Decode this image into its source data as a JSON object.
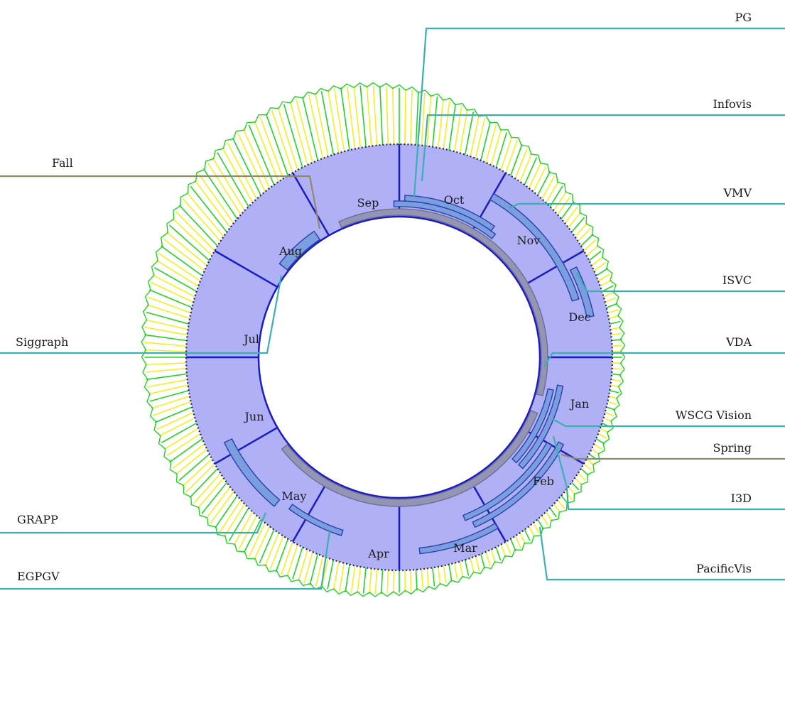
{
  "months": [
    {
      "key": "jan",
      "label": "Jan"
    },
    {
      "key": "feb",
      "label": "Feb"
    },
    {
      "key": "mar",
      "label": "Mar"
    },
    {
      "key": "apr",
      "label": "Apr"
    },
    {
      "key": "may",
      "label": "May"
    },
    {
      "key": "jun",
      "label": "Jun"
    },
    {
      "key": "jul",
      "label": "Jul"
    },
    {
      "key": "aug",
      "label": "Aug"
    },
    {
      "key": "sep",
      "label": "Sep"
    },
    {
      "key": "oct",
      "label": "Oct"
    },
    {
      "key": "nov",
      "label": "Nov"
    },
    {
      "key": "dec",
      "label": "Dec"
    }
  ],
  "callouts": [
    {
      "key": "pg",
      "label": "PG",
      "kind": "conference"
    },
    {
      "key": "infovis",
      "label": "Infovis",
      "kind": "conference"
    },
    {
      "key": "vmv",
      "label": "VMV",
      "kind": "conference"
    },
    {
      "key": "isvc",
      "label": "ISVC",
      "kind": "conference"
    },
    {
      "key": "vda",
      "label": "VDA",
      "kind": "conference"
    },
    {
      "key": "wscg",
      "label": "WSCG Vision",
      "kind": "conference"
    },
    {
      "key": "spring",
      "label": "Spring",
      "kind": "season"
    },
    {
      "key": "i3d",
      "label": "I3D",
      "kind": "conference"
    },
    {
      "key": "pacificvis",
      "label": "PacificVis",
      "kind": "conference"
    },
    {
      "key": "fall",
      "label": "Fall",
      "kind": "season"
    },
    {
      "key": "siggraph",
      "label": "Siggraph",
      "kind": "conference"
    },
    {
      "key": "grapp",
      "label": "GRAPP",
      "kind": "conference"
    },
    {
      "key": "egpgv",
      "label": "EGPGV",
      "kind": "conference"
    }
  ],
  "colors": {
    "ring_fill": "#b0b0f6",
    "ring_stroke": "#1c1cc4",
    "outer_dotted": "#24245e",
    "conference_bar": "#7a9ee0",
    "conference_bar_stroke": "#2b3fa8",
    "season_bar": "#9494b4",
    "conference_line": "#3ab0b0",
    "season_line": "#8c8c68",
    "spike_yellow": "#f2f020",
    "spike_green": "#22d422"
  }
}
